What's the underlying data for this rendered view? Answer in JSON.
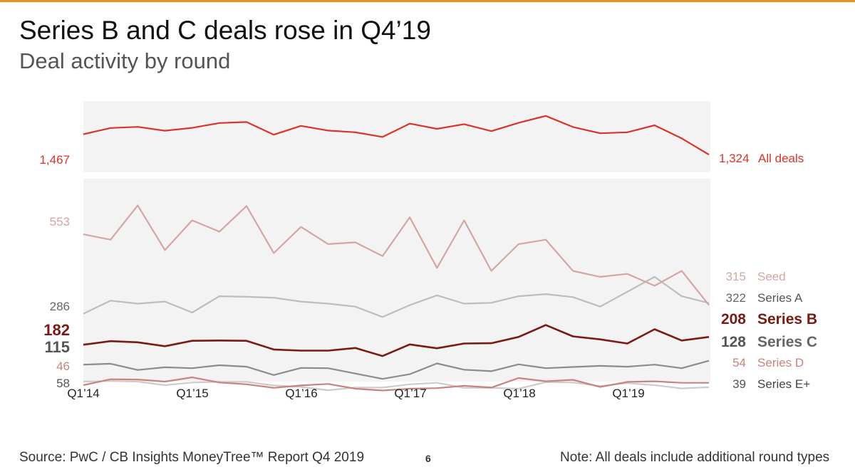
{
  "header": {
    "title": "Series B and C deals rose in Q4’19",
    "subtitle": "Deal activity by round"
  },
  "footer": {
    "source": "Source: PwC / CB Insights MoneyTree™ Report Q4 2019",
    "page_number": "6",
    "note": "Note: All deals include additional round types"
  },
  "colors": {
    "all_deals": "#d9342b",
    "seed": "#d3a6a3",
    "series_a": "#bdbdbd",
    "series_b": "#7a1a14",
    "series_c": "#8c8c8c",
    "series_d": "#c9837d",
    "series_e": "#cccccc",
    "panel": "#f3f3f3",
    "accent_bar": "#e8941e"
  },
  "chart_data": {
    "type": "line",
    "title": "Deal activity by round",
    "x": [
      "Q1’14",
      "Q2’14",
      "Q3’14",
      "Q4’14",
      "Q1’15",
      "Q2’15",
      "Q3’15",
      "Q4’15",
      "Q1’16",
      "Q2’16",
      "Q3’16",
      "Q4’16",
      "Q1’17",
      "Q2’17",
      "Q3’17",
      "Q4’17",
      "Q1’18",
      "Q2’18",
      "Q3’18",
      "Q4’18",
      "Q1’19",
      "Q2’19",
      "Q3’19",
      "Q4’19"
    ],
    "x_tick_labels": [
      "Q1’14",
      "Q1’15",
      "Q1’16",
      "Q1’17",
      "Q1’18",
      "Q1’19"
    ],
    "grid": false,
    "panels": [
      {
        "name": "all-deals-panel",
        "ylim": [
          1200,
          1700
        ],
        "series": [
          {
            "key": "all_deals",
            "name": "All deals",
            "start_label": "1,467",
            "end_label": "1,324",
            "values": [
              1467,
              1511,
              1519,
              1492,
              1512,
              1546,
              1553,
              1464,
              1526,
              1493,
              1481,
              1448,
              1542,
              1505,
              1538,
              1489,
              1547,
              1596,
              1518,
              1474,
              1481,
              1530,
              1438,
              1324
            ]
          }
        ]
      },
      {
        "name": "rounds-panel",
        "ylim": [
          58,
          740
        ],
        "series": [
          {
            "key": "seed",
            "name": "Seed",
            "start_label": "553",
            "end_label": "315",
            "values": [
              553,
              535,
              650,
              500,
              600,
              562,
              648,
              490,
              578,
              520,
              526,
              480,
              610,
              440,
              600,
              430,
              520,
              535,
              430,
              410,
              420,
              380,
              430,
              315
            ]
          },
          {
            "key": "series_a",
            "name": "Series A",
            "start_label": "286",
            "end_label": "322",
            "values": [
              286,
              330,
              320,
              327,
              290,
              345,
              343,
              340,
              327,
              320,
              310,
              275,
              315,
              348,
              320,
              323,
              345,
              352,
              342,
              310,
              360,
              410,
              345,
              322
            ]
          },
          {
            "key": "series_b",
            "name": "Series B",
            "start_label": "182",
            "end_label": "208",
            "values": [
              182,
              194,
              190,
              177,
              195,
              196,
              195,
              166,
              162,
              162,
              171,
              144,
              183,
              170,
              186,
              187,
              208,
              248,
              210,
              200,
              186,
              234,
              196,
              208
            ]
          },
          {
            "key": "series_c",
            "name": "Series C",
            "start_label": "115",
            "end_label": "128",
            "values": [
              115,
              118,
              97,
              106,
              103,
              113,
              108,
              80,
              104,
              103,
              85,
              67,
              83,
              119,
              98,
              93,
              116,
              103,
              107,
              111,
              108,
              115,
              103,
              128
            ]
          },
          {
            "key": "series_d",
            "name": "Series D",
            "start_label": "46",
            "end_label": "54",
            "values": [
              46,
              66,
              65,
              58,
              72,
              55,
              49,
              37,
              45,
              50,
              34,
              28,
              34,
              36,
              44,
              38,
              70,
              59,
              64,
              40,
              57,
              59,
              54,
              54
            ]
          },
          {
            "key": "series_e",
            "name": "Series E+",
            "start_label": "58",
            "end_label": "39",
            "values": [
              58,
              60,
              58,
              46,
              55,
              57,
              57,
              45,
              40,
              29,
              38,
              38,
              49,
              54,
              37,
              37,
              34,
              56,
              55,
              43,
              53,
              46,
              35,
              39
            ]
          }
        ]
      }
    ],
    "left_axis_labels": [
      {
        "series": "all_deals",
        "text": "1,467"
      },
      {
        "series": "seed",
        "text": "553"
      },
      {
        "series": "series_a",
        "text": "286"
      },
      {
        "series": "series_b",
        "text": "182"
      },
      {
        "series": "series_c",
        "text": "115"
      },
      {
        "series": "series_d",
        "text": "46"
      },
      {
        "series": "series_e",
        "text": "58"
      }
    ]
  }
}
